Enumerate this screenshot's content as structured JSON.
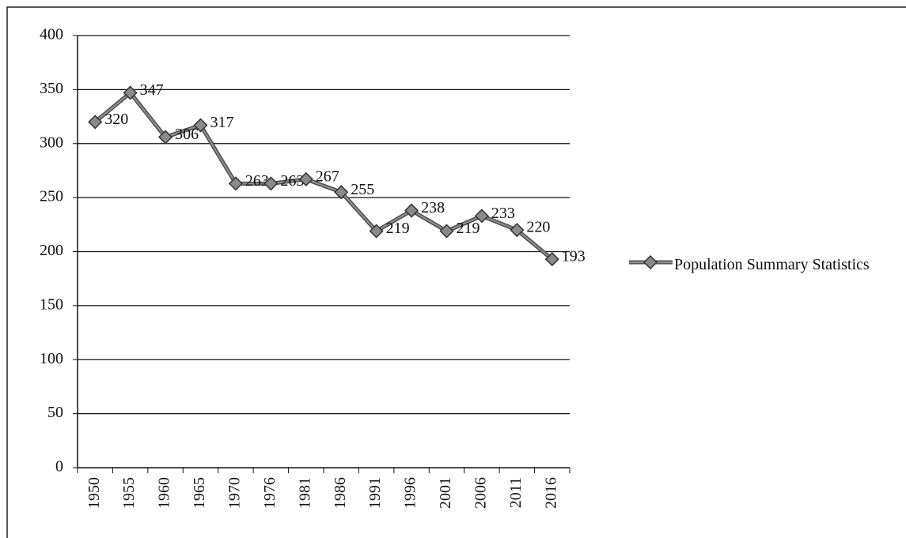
{
  "chart_data": {
    "type": "line",
    "categories": [
      "1950",
      "1955",
      "1960",
      "1965",
      "1970",
      "1976",
      "1981",
      "1986",
      "1991",
      "1996",
      "2001",
      "2006",
      "2011",
      "2016"
    ],
    "series": [
      {
        "name": "Population Summary Statistics",
        "color": "#8a8a8a",
        "values": [
          320,
          347,
          306,
          317,
          263,
          263,
          267,
          255,
          219,
          238,
          219,
          233,
          220,
          193
        ]
      }
    ],
    "ylim": [
      0,
      400
    ],
    "yticks": [
      0,
      50,
      100,
      150,
      200,
      250,
      300,
      350,
      400
    ],
    "grid": true,
    "legend": "right"
  }
}
